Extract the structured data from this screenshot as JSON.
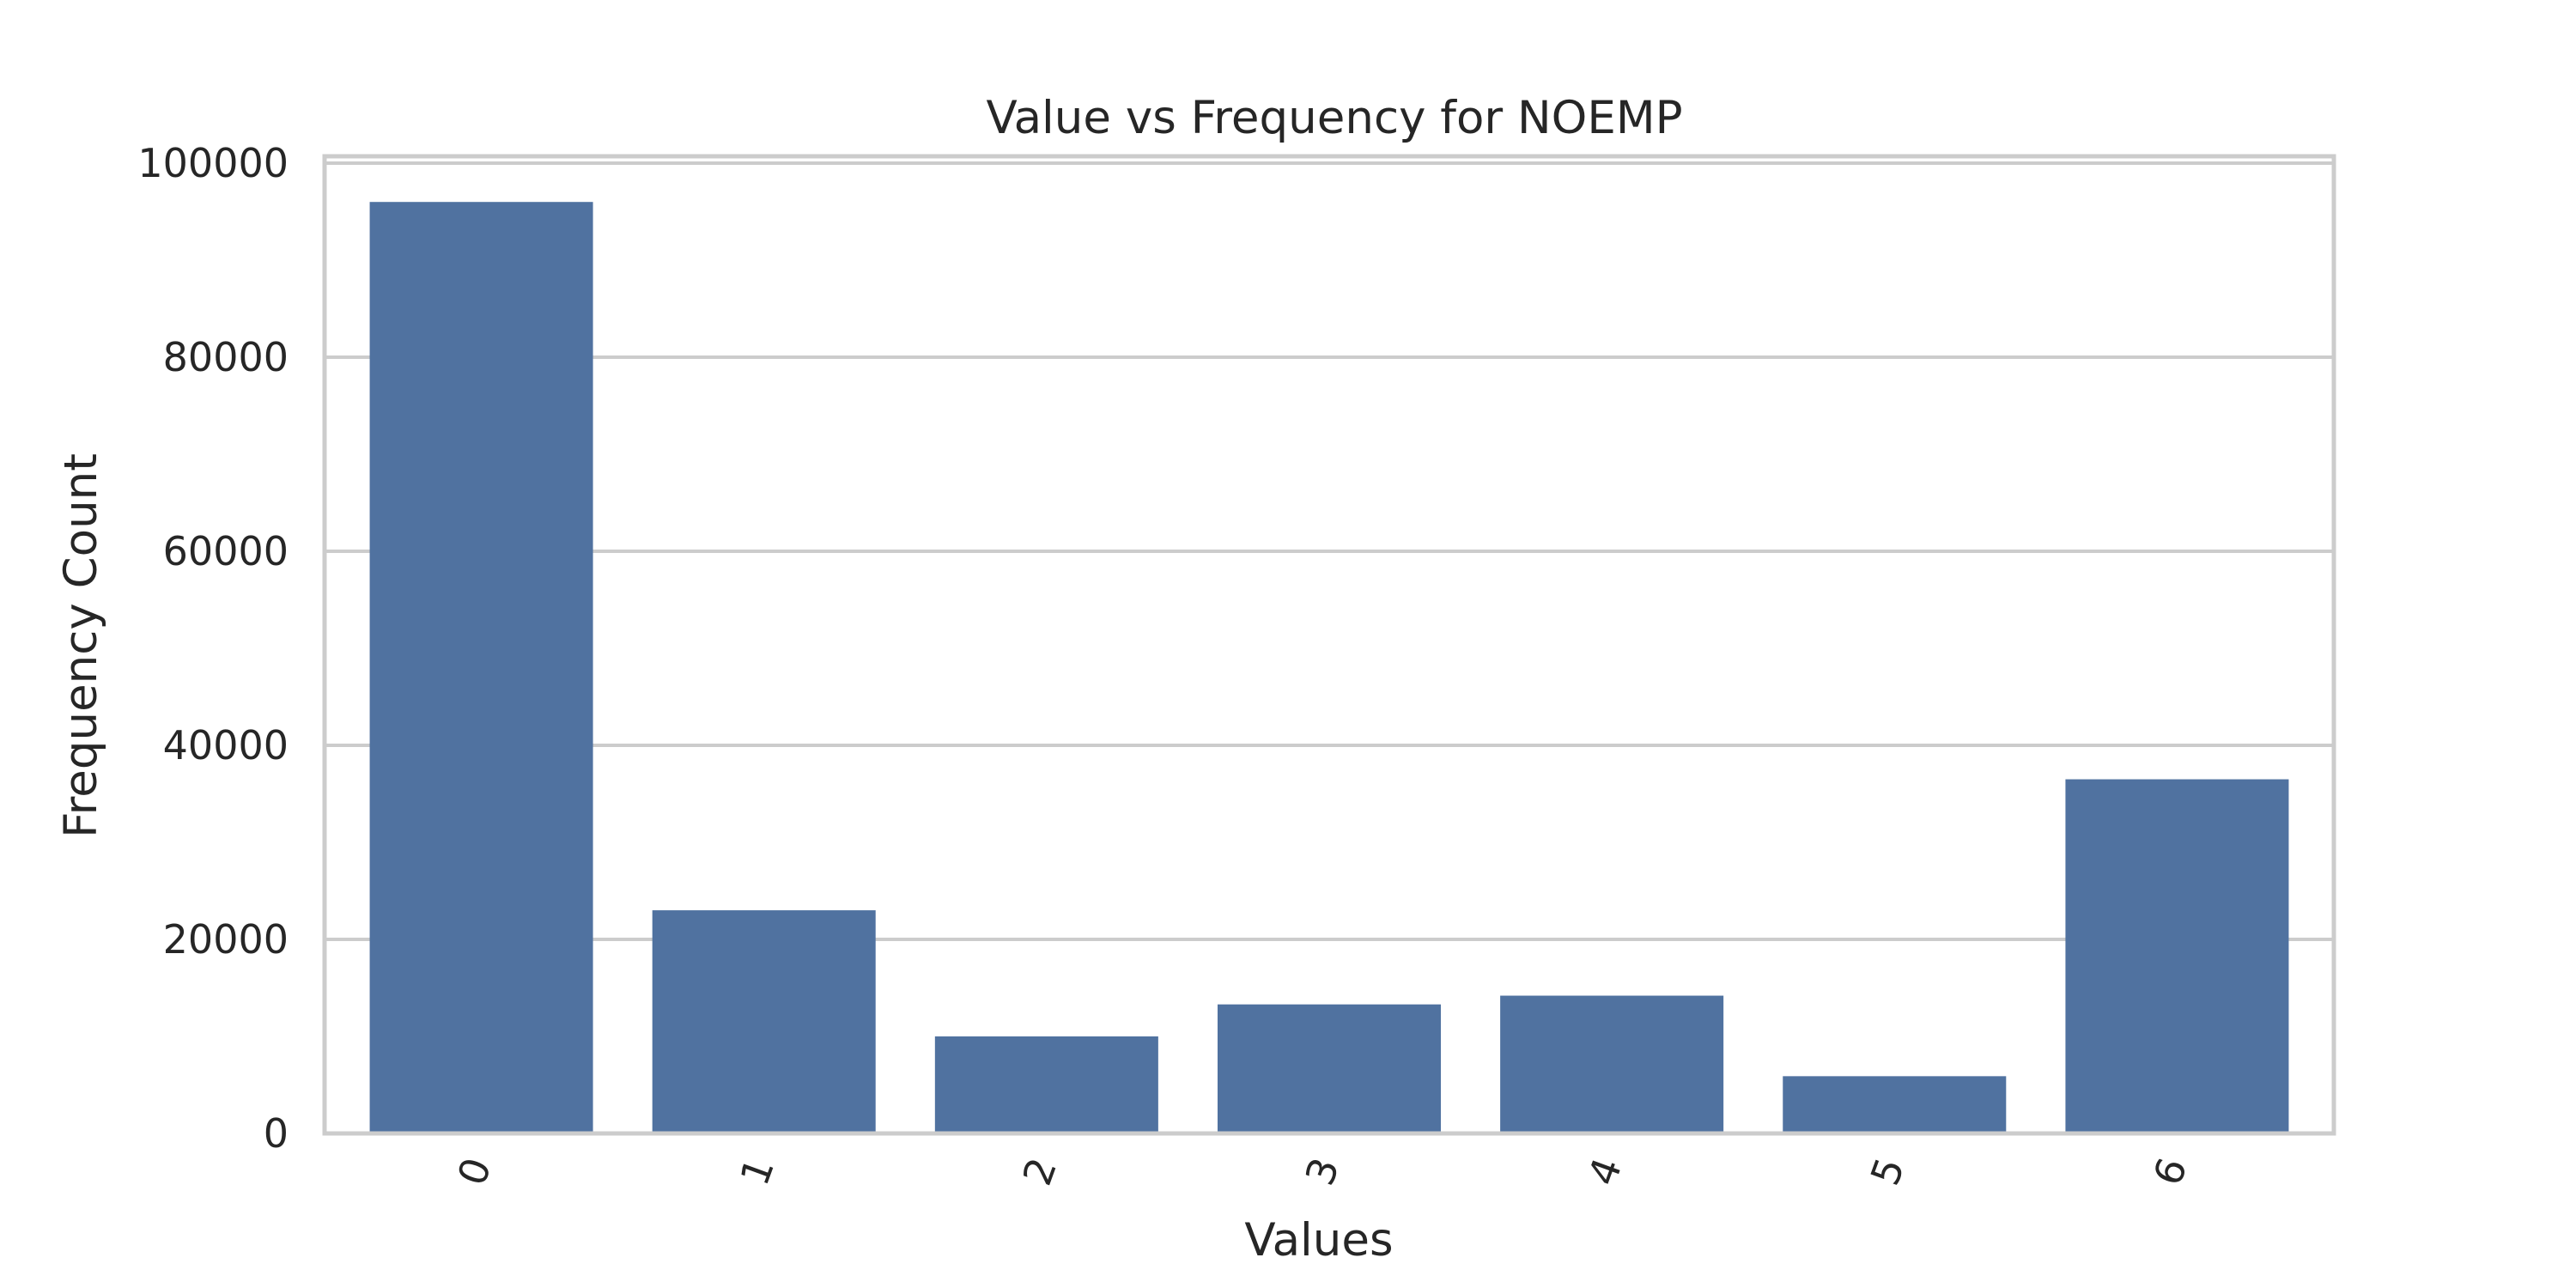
{
  "chart_data": {
    "type": "bar",
    "title": "Value vs Frequency for NOEMP",
    "xlabel": "Values",
    "ylabel": "Frequency Count",
    "categories": [
      "0",
      "1",
      "2",
      "3",
      "4",
      "5",
      "6"
    ],
    "values": [
      96000,
      23000,
      10000,
      13300,
      14200,
      5900,
      36500
    ],
    "ylim": [
      0,
      100000
    ],
    "yticks": [
      0,
      20000,
      40000,
      60000,
      80000,
      100000
    ],
    "grid": "horizontal",
    "xtick_rotation": "rotated",
    "bar_color": "#5072a0",
    "grid_color": "#cccccc",
    "frame_color": "#cccccc",
    "text_color": "#262626"
  }
}
